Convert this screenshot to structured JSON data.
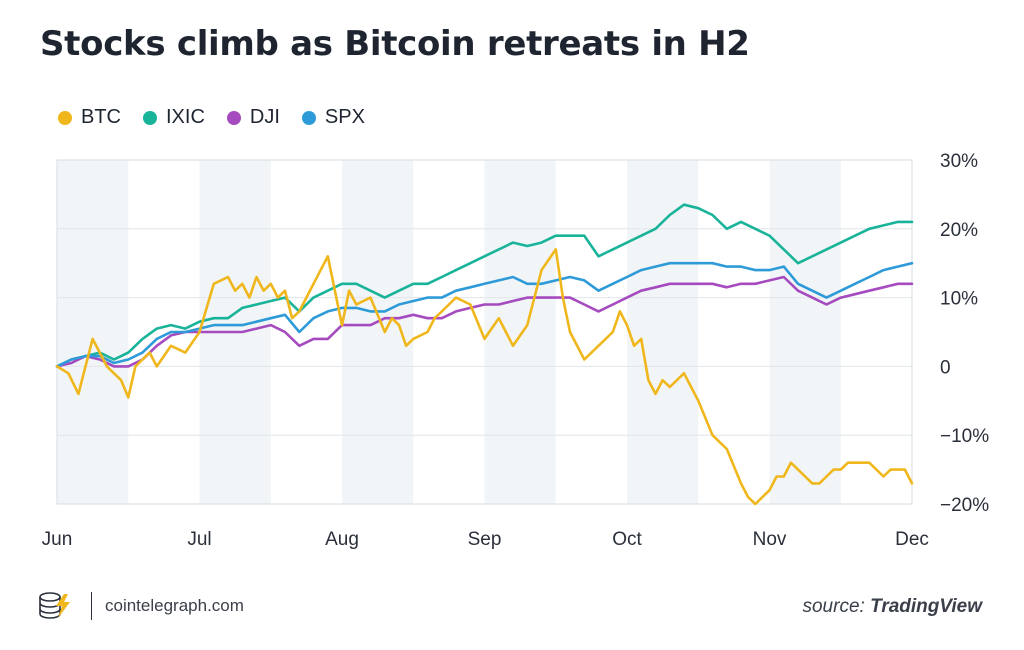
{
  "title": "Stocks climb as Bitcoin retreats in H2",
  "legend": [
    {
      "label": "BTC",
      "color": "#f0b71c"
    },
    {
      "label": "IXIC",
      "color": "#19b39a"
    },
    {
      "label": "DJI",
      "color": "#a54bbf"
    },
    {
      "label": "SPX",
      "color": "#2e9bd8"
    }
  ],
  "footer": {
    "site": "cointelegraph.com",
    "source_label": "source:",
    "source_name": "TradingView",
    "logo_icon": "cointelegraph-logo-icon"
  },
  "chart_data": {
    "type": "line",
    "title": "Stocks climb as Bitcoin retreats in H2",
    "xlabel": "",
    "ylabel": "",
    "x_ticks": [
      "Jun",
      "Jul",
      "Aug",
      "Sep",
      "Oct",
      "Nov",
      "Dec"
    ],
    "y_ticks": [
      "30%",
      "20%",
      "10%",
      "0",
      "−10%",
      "−20%"
    ],
    "y_tick_values": [
      30,
      20,
      10,
      0,
      -10,
      -20
    ],
    "ylim": [
      -20,
      30
    ],
    "xlim": [
      0,
      6
    ],
    "grid": true,
    "legend_position": "top-left",
    "series": [
      {
        "name": "BTC",
        "color": "#f0b71c",
        "x": [
          0,
          0.08,
          0.15,
          0.2,
          0.25,
          0.3,
          0.35,
          0.4,
          0.45,
          0.5,
          0.55,
          0.6,
          0.65,
          0.7,
          0.8,
          0.9,
          1.0,
          1.1,
          1.2,
          1.25,
          1.3,
          1.35,
          1.4,
          1.45,
          1.5,
          1.55,
          1.6,
          1.65,
          1.7,
          1.75,
          1.8,
          1.9,
          2.0,
          2.05,
          2.1,
          2.2,
          2.3,
          2.35,
          2.4,
          2.45,
          2.5,
          2.6,
          2.65,
          2.7,
          2.75,
          2.8,
          2.9,
          3.0,
          3.1,
          3.2,
          3.3,
          3.35,
          3.4,
          3.5,
          3.55,
          3.6,
          3.7,
          3.8,
          3.9,
          3.95,
          4.0,
          4.05,
          4.1,
          4.15,
          4.2,
          4.25,
          4.3,
          4.4,
          4.5,
          4.6,
          4.7,
          4.8,
          4.85,
          4.9,
          5.0,
          5.05,
          5.1,
          5.15,
          5.2,
          5.25,
          5.3,
          5.35,
          5.4,
          5.45,
          5.5,
          5.55,
          5.6,
          5.7,
          5.75,
          5.8,
          5.85,
          5.9,
          5.95,
          6.0
        ],
        "y": [
          0,
          -1,
          -4,
          0,
          4,
          2,
          0,
          -1,
          -2,
          -4.5,
          0,
          1,
          2,
          0,
          3,
          2,
          5,
          12,
          13,
          11,
          12,
          10,
          13,
          11,
          12,
          10,
          11,
          7,
          8,
          10,
          12,
          16,
          6,
          11,
          9,
          10,
          5,
          7,
          6,
          3,
          4,
          5,
          7,
          8,
          9,
          10,
          9,
          4,
          7,
          3,
          6,
          10,
          14,
          17,
          10,
          5,
          1,
          3,
          5,
          8,
          6,
          3,
          4,
          -2,
          -4,
          -2,
          -3,
          -1,
          -5,
          -10,
          -12,
          -17,
          -19,
          -20,
          -18,
          -16,
          -16,
          -14,
          -15,
          -16,
          -17,
          -17,
          -16,
          -15,
          -15,
          -14,
          -14,
          -14,
          -15,
          -16,
          -15,
          -15,
          -15,
          -17
        ]
      },
      {
        "name": "IXIC",
        "color": "#19b39a",
        "x": [
          0,
          0.1,
          0.2,
          0.3,
          0.4,
          0.5,
          0.6,
          0.7,
          0.8,
          0.9,
          1.0,
          1.1,
          1.2,
          1.3,
          1.4,
          1.5,
          1.6,
          1.7,
          1.8,
          1.9,
          2.0,
          2.1,
          2.2,
          2.3,
          2.4,
          2.5,
          2.6,
          2.7,
          2.8,
          2.9,
          3.0,
          3.1,
          3.2,
          3.3,
          3.4,
          3.5,
          3.6,
          3.7,
          3.8,
          3.9,
          4.0,
          4.1,
          4.2,
          4.3,
          4.4,
          4.5,
          4.6,
          4.7,
          4.8,
          4.9,
          5.0,
          5.1,
          5.2,
          5.3,
          5.4,
          5.5,
          5.6,
          5.7,
          5.8,
          5.9,
          6.0
        ],
        "y": [
          0,
          1,
          1.5,
          2,
          1,
          2,
          4,
          5.5,
          6,
          5.5,
          6.5,
          7,
          7,
          8.5,
          9,
          9.5,
          10,
          8,
          10,
          11,
          12,
          12,
          11,
          10,
          11,
          12,
          12,
          13,
          14,
          15,
          16,
          17,
          18,
          17.5,
          18,
          19,
          19,
          19,
          16,
          17,
          18,
          19,
          20,
          22,
          23.5,
          23,
          22,
          20,
          21,
          20,
          19,
          17,
          15,
          16,
          17,
          18,
          19,
          20,
          20.5,
          21,
          21
        ]
      },
      {
        "name": "DJI",
        "color": "#a54bbf",
        "x": [
          0,
          0.1,
          0.2,
          0.3,
          0.4,
          0.5,
          0.6,
          0.7,
          0.8,
          0.9,
          1.0,
          1.1,
          1.2,
          1.3,
          1.4,
          1.5,
          1.6,
          1.7,
          1.8,
          1.9,
          2.0,
          2.1,
          2.2,
          2.3,
          2.4,
          2.5,
          2.6,
          2.7,
          2.8,
          2.9,
          3.0,
          3.1,
          3.2,
          3.3,
          3.4,
          3.5,
          3.6,
          3.7,
          3.8,
          3.9,
          4.0,
          4.1,
          4.2,
          4.3,
          4.4,
          4.5,
          4.6,
          4.7,
          4.8,
          4.9,
          5.0,
          5.1,
          5.2,
          5.3,
          5.4,
          5.5,
          5.6,
          5.7,
          5.8,
          5.9,
          6.0
        ],
        "y": [
          0,
          0.5,
          1.5,
          1,
          0,
          0,
          1,
          3,
          4.5,
          5,
          5,
          5,
          5,
          5,
          5.5,
          6,
          5,
          3,
          4,
          4,
          6,
          6,
          6,
          7,
          7,
          7.5,
          7,
          7,
          8,
          8.5,
          9,
          9,
          9.5,
          10,
          10,
          10,
          10,
          9,
          8,
          9,
          10,
          11,
          11.5,
          12,
          12,
          12,
          12,
          11.5,
          12,
          12,
          12.5,
          13,
          11,
          10,
          9,
          10,
          10.5,
          11,
          11.5,
          12,
          12
        ]
      },
      {
        "name": "SPX",
        "color": "#2e9bd8",
        "x": [
          0,
          0.1,
          0.2,
          0.3,
          0.4,
          0.5,
          0.6,
          0.7,
          0.8,
          0.9,
          1.0,
          1.1,
          1.2,
          1.3,
          1.4,
          1.5,
          1.6,
          1.7,
          1.8,
          1.9,
          2.0,
          2.1,
          2.2,
          2.3,
          2.4,
          2.5,
          2.6,
          2.7,
          2.8,
          2.9,
          3.0,
          3.1,
          3.2,
          3.3,
          3.4,
          3.5,
          3.6,
          3.7,
          3.8,
          3.9,
          4.0,
          4.1,
          4.2,
          4.3,
          4.4,
          4.5,
          4.6,
          4.7,
          4.8,
          4.9,
          5.0,
          5.1,
          5.2,
          5.3,
          5.4,
          5.5,
          5.6,
          5.7,
          5.8,
          5.9,
          6.0
        ],
        "y": [
          0,
          1,
          1.5,
          1.5,
          0.5,
          1,
          2,
          4,
          5,
          5,
          5.5,
          6,
          6,
          6,
          6.5,
          7,
          7.5,
          5,
          7,
          8,
          8.5,
          8.5,
          8,
          8,
          9,
          9.5,
          10,
          10,
          11,
          11.5,
          12,
          12.5,
          13,
          12,
          12,
          12.5,
          13,
          12.5,
          11,
          12,
          13,
          14,
          14.5,
          15,
          15,
          15,
          15,
          14.5,
          14.5,
          14,
          14,
          14.5,
          12,
          11,
          10,
          11,
          12,
          13,
          14,
          14.5,
          15
        ]
      }
    ]
  }
}
